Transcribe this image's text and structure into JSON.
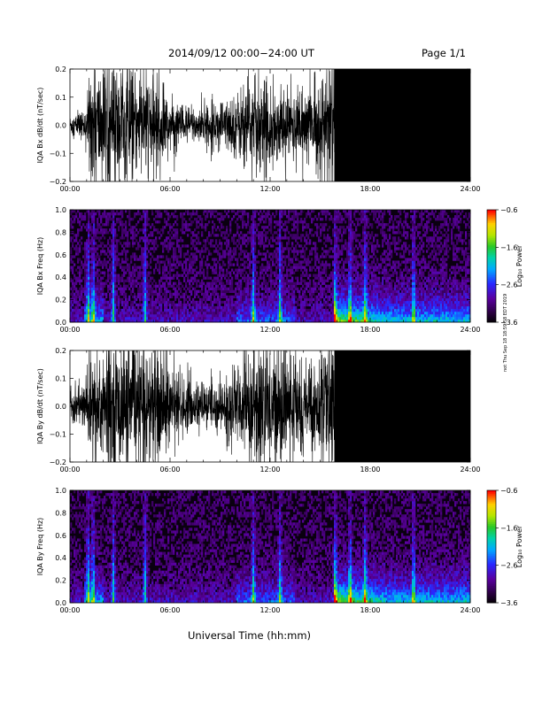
{
  "header": {
    "title": "2014/09/12  00:00−24:00 UT",
    "page": "Page 1/1"
  },
  "footer": {
    "x_axis_title": "Universal Time (hh:mm)",
    "side_stamp": "not Thu Sep 18 18:59:58 EDT 2019"
  },
  "chart_data": [
    {
      "type": "line",
      "ylabel": "IQA Bx dB/dt (nT/sec)",
      "ylim": [
        -0.2,
        0.2
      ],
      "yticks": [
        "−0.2",
        "−0.1",
        "0.0",
        "0.1",
        "0.2"
      ],
      "yvalues": [
        -0.2,
        -0.1,
        0.0,
        0.1,
        0.2
      ],
      "xticks": [
        "00:00",
        "06:00",
        "12:00",
        "18:00",
        "24:00"
      ],
      "xlim_hours": [
        0,
        24
      ],
      "series": [
        {
          "x": [
            0,
            1,
            1.2,
            2,
            3,
            4,
            5,
            6,
            7,
            8,
            9,
            10,
            11,
            12,
            13,
            14,
            15,
            15.8,
            16,
            17,
            18,
            19,
            20,
            21,
            22,
            23,
            24
          ],
          "amplitude": [
            0.03,
            0.05,
            0.2,
            0.18,
            0.2,
            0.15,
            0.16,
            0.08,
            0.06,
            0.06,
            0.07,
            0.1,
            0.16,
            0.12,
            0.1,
            0.12,
            0.14,
            0.2,
            0.2,
            0.2,
            0.2,
            0.18,
            0.16,
            0.14,
            0.13,
            0.12,
            0.12
          ]
        }
      ]
    },
    {
      "type": "heatmap",
      "ylabel": "IQA Bx Freq (Hz)",
      "ylim": [
        0.0,
        1.0
      ],
      "yticks": [
        "0.0",
        "0.2",
        "0.4",
        "0.6",
        "0.8",
        "1.0"
      ],
      "yvalues": [
        0,
        0.2,
        0.4,
        0.6,
        0.8,
        1.0
      ],
      "xticks": [
        "00:00",
        "06:00",
        "12:00",
        "18:00",
        "24:00"
      ],
      "colorbar": {
        "label": "Log₁₀ Power",
        "range": [
          -3.6,
          -0.6
        ],
        "ticks": [
          "−0.6",
          "−1.6",
          "−2.6",
          "−3.6"
        ],
        "tickvalues": [
          -0.6,
          -1.6,
          -2.6,
          -3.6
        ]
      },
      "bursts_hours": [
        1.1,
        1.4,
        2.6,
        4.5,
        11.0,
        12.6,
        15.9,
        16.8,
        17.7,
        20.6
      ]
    },
    {
      "type": "line",
      "ylabel": "IQA By dB/dt (nT/sec)",
      "ylim": [
        -0.2,
        0.2
      ],
      "yticks": [
        "−0.2",
        "−0.1",
        "0.0",
        "0.1",
        "0.2"
      ],
      "yvalues": [
        -0.2,
        -0.1,
        0.0,
        0.1,
        0.2
      ],
      "xticks": [
        "00:00",
        "06:00",
        "12:00",
        "18:00",
        "24:00"
      ],
      "xlim_hours": [
        0,
        24
      ],
      "series": [
        {
          "x": [
            0,
            1,
            1.2,
            2,
            3,
            4,
            5,
            6,
            7,
            8,
            9,
            10,
            11,
            12,
            13,
            14,
            15,
            15.8,
            16,
            17,
            18,
            19,
            20,
            21,
            22,
            23,
            24
          ],
          "amplitude": [
            0.05,
            0.08,
            0.2,
            0.2,
            0.2,
            0.18,
            0.2,
            0.12,
            0.08,
            0.07,
            0.08,
            0.12,
            0.2,
            0.2,
            0.15,
            0.14,
            0.14,
            0.2,
            0.2,
            0.2,
            0.2,
            0.2,
            0.2,
            0.2,
            0.2,
            0.2,
            0.2
          ]
        }
      ]
    },
    {
      "type": "heatmap",
      "ylabel": "IQA By Freq (Hz)",
      "ylim": [
        0.0,
        1.0
      ],
      "yticks": [
        "0.0",
        "0.2",
        "0.4",
        "0.6",
        "0.8",
        "1.0"
      ],
      "yvalues": [
        0,
        0.2,
        0.4,
        0.6,
        0.8,
        1.0
      ],
      "xticks": [
        "00:00",
        "06:00",
        "12:00",
        "18:00",
        "24:00"
      ],
      "colorbar": {
        "label": "Log₁₀ Power",
        "range": [
          -3.6,
          -0.6
        ],
        "ticks": [
          "−0.6",
          "−1.6",
          "−2.6",
          "−3.6"
        ],
        "tickvalues": [
          -0.6,
          -1.6,
          -2.6,
          -3.6
        ]
      },
      "bursts_hours": [
        1.1,
        1.4,
        2.6,
        4.5,
        11.0,
        12.6,
        15.9,
        16.8,
        17.7,
        20.6
      ]
    }
  ]
}
